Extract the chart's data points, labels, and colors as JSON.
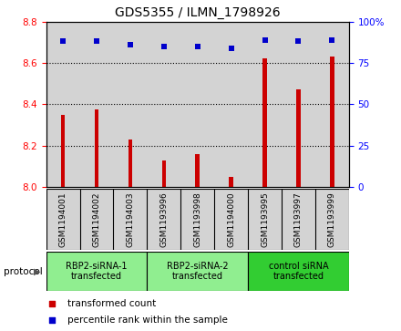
{
  "title": "GDS5355 / ILMN_1798926",
  "samples": [
    "GSM1194001",
    "GSM1194002",
    "GSM1194003",
    "GSM1193996",
    "GSM1193998",
    "GSM1194000",
    "GSM1193995",
    "GSM1193997",
    "GSM1193999"
  ],
  "transformed_counts": [
    8.35,
    8.375,
    8.23,
    8.13,
    8.16,
    8.05,
    8.62,
    8.47,
    8.63
  ],
  "percentile_ranks": [
    88,
    88,
    86,
    85,
    85,
    84,
    89,
    88,
    89
  ],
  "ylim_left": [
    8.0,
    8.8
  ],
  "ylim_right": [
    0,
    100
  ],
  "yticks_left": [
    8.0,
    8.2,
    8.4,
    8.6,
    8.8
  ],
  "yticks_right": [
    0,
    25,
    50,
    75,
    100
  ],
  "bar_color": "#cc0000",
  "dot_color": "#0000cc",
  "protocol_groups": [
    {
      "label": "RBP2-siRNA-1\ntransfected",
      "start": 0,
      "end": 3,
      "color": "#90ee90"
    },
    {
      "label": "RBP2-siRNA-2\ntransfected",
      "start": 3,
      "end": 6,
      "color": "#90ee90"
    },
    {
      "label": "control siRNA\ntransfected",
      "start": 6,
      "end": 9,
      "color": "#32cd32"
    }
  ],
  "legend_bar_label": "transformed count",
  "legend_dot_label": "percentile rank within the sample",
  "protocol_label": "protocol",
  "bg_color": "#d3d3d3",
  "title_fontsize": 10,
  "tick_fontsize": 7.5
}
